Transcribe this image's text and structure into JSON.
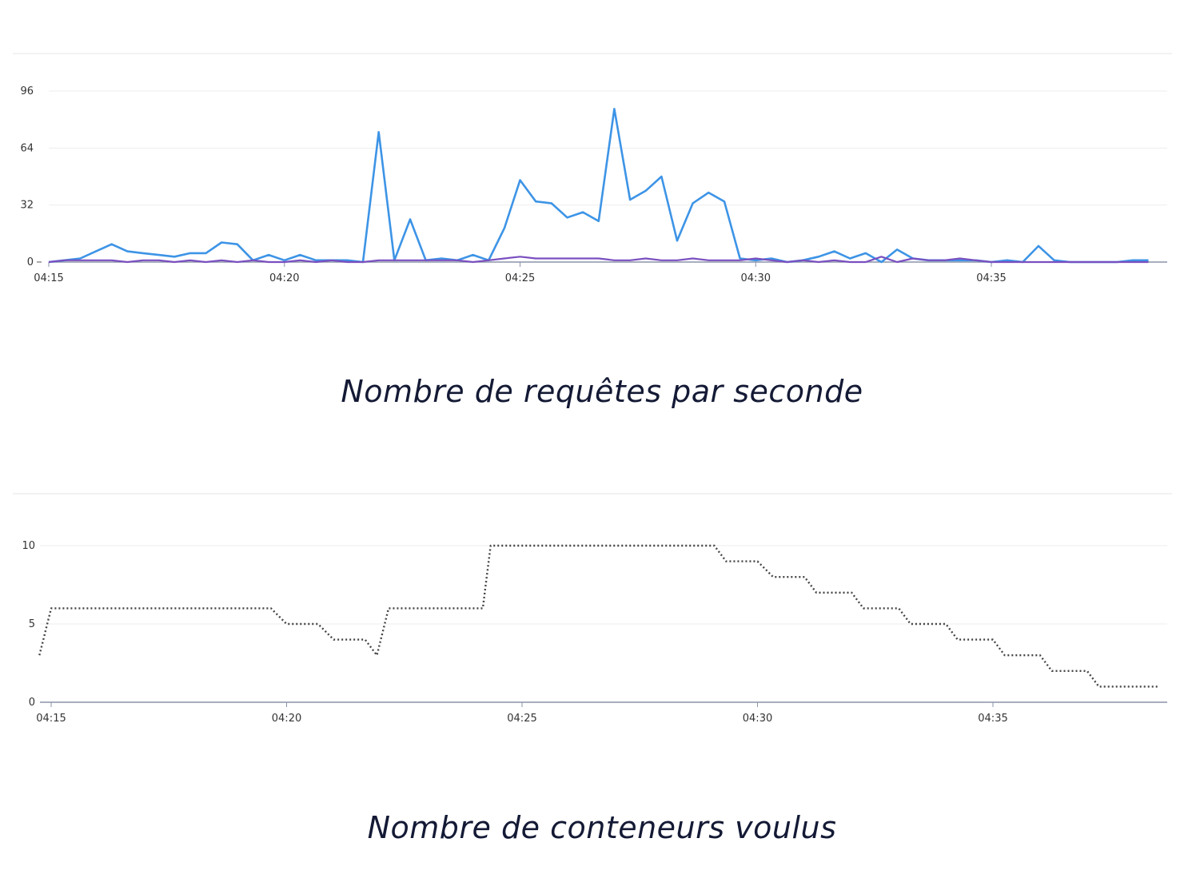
{
  "charts": [
    {
      "caption": "Nombre de requêtes par seconde"
    },
    {
      "caption": "Nombre de conteneurs voulus"
    }
  ],
  "chart_data": [
    {
      "type": "line",
      "title": "Nombre de requêtes par seconde",
      "xlabel": "",
      "ylabel": "",
      "x_ticks": [
        "04:15",
        "04:20",
        "04:25",
        "04:30",
        "04:35"
      ],
      "y_ticks": [
        0,
        32,
        64,
        96
      ],
      "ylim": [
        0,
        100
      ],
      "xlim": [
        "04:15",
        "04:38:30"
      ],
      "grid": true,
      "x": [
        "04:15",
        "04:15:20",
        "04:15:40",
        "04:16",
        "04:16:20",
        "04:16:40",
        "04:17",
        "04:17:20",
        "04:17:40",
        "04:18",
        "04:18:20",
        "04:18:40",
        "04:19",
        "04:19:20",
        "04:19:40",
        "04:20",
        "04:20:20",
        "04:20:40",
        "04:21",
        "04:21:20",
        "04:21:40",
        "04:22",
        "04:22:20",
        "04:22:40",
        "04:23",
        "04:23:20",
        "04:23:40",
        "04:24",
        "04:24:20",
        "04:24:40",
        "04:25",
        "04:25:20",
        "04:25:40",
        "04:26",
        "04:26:20",
        "04:26:40",
        "04:27",
        "04:27:20",
        "04:27:40",
        "04:28",
        "04:28:20",
        "04:28:40",
        "04:29",
        "04:29:20",
        "04:29:40",
        "04:30",
        "04:30:20",
        "04:30:40",
        "04:31",
        "04:31:20",
        "04:31:40",
        "04:32",
        "04:32:20",
        "04:32:40",
        "04:33",
        "04:33:20",
        "04:33:40",
        "04:34",
        "04:34:20",
        "04:34:40",
        "04:35",
        "04:35:20",
        "04:35:40",
        "04:36",
        "04:36:20",
        "04:36:40",
        "04:37",
        "04:37:20",
        "04:37:40",
        "04:38",
        "04:38:20"
      ],
      "series": [
        {
          "color": "#3d94e6",
          "values": [
            0,
            1,
            2,
            6,
            10,
            6,
            5,
            4,
            3,
            5,
            5,
            11,
            10,
            1,
            4,
            1,
            4,
            1,
            1,
            1,
            0,
            73,
            1,
            24,
            1,
            2,
            1,
            4,
            1,
            19,
            46,
            34,
            33,
            25,
            28,
            23,
            86,
            35,
            40,
            48,
            12,
            33,
            39,
            34,
            2,
            1,
            2,
            0,
            1,
            3,
            6,
            2,
            5,
            0,
            7,
            2,
            1,
            1,
            1,
            1,
            0,
            1,
            0,
            9,
            1,
            0,
            0,
            0,
            0,
            1,
            1
          ]
        },
        {
          "color": "#7a4fc0",
          "values": [
            0,
            1,
            1,
            1,
            1,
            0,
            1,
            1,
            0,
            1,
            0,
            1,
            0,
            1,
            0,
            0,
            1,
            0,
            1,
            0,
            0,
            1,
            1,
            1,
            1,
            1,
            1,
            0,
            1,
            2,
            3,
            2,
            2,
            2,
            2,
            2,
            1,
            1,
            2,
            1,
            1,
            2,
            1,
            1,
            1,
            2,
            1,
            0,
            1,
            0,
            1,
            0,
            0,
            3,
            0,
            2,
            1,
            1,
            2,
            1,
            0,
            0,
            0,
            0,
            0,
            0,
            0,
            0,
            0,
            0,
            0
          ]
        }
      ]
    },
    {
      "type": "line",
      "title": "Nombre de conteneurs voulus",
      "xlabel": "",
      "ylabel": "",
      "x_ticks": [
        "04:15",
        "04:20",
        "04:25",
        "04:30",
        "04:35"
      ],
      "y_ticks": [
        0,
        5,
        10
      ],
      "ylim": [
        0,
        10
      ],
      "xlim": [
        "04:14:45",
        "04:38:30"
      ],
      "grid": true,
      "line_style": "dotted",
      "series": [
        {
          "color": "#444444",
          "points": [
            [
              "04:14:45",
              3
            ],
            [
              "04:15",
              6
            ],
            [
              "04:19:40",
              6
            ],
            [
              "04:20",
              5
            ],
            [
              "04:20:40",
              5
            ],
            [
              "04:21",
              4
            ],
            [
              "04:21:40",
              4
            ],
            [
              "04:21:55",
              3
            ],
            [
              "04:22:10",
              6
            ],
            [
              "04:24:10",
              6
            ],
            [
              "04:24:20",
              10
            ],
            [
              "04:29:05",
              10
            ],
            [
              "04:29:20",
              9
            ],
            [
              "04:30",
              9
            ],
            [
              "04:30:20",
              8
            ],
            [
              "04:31",
              8
            ],
            [
              "04:31:15",
              7
            ],
            [
              "04:32",
              7
            ],
            [
              "04:32:15",
              6
            ],
            [
              "04:33",
              6
            ],
            [
              "04:33:15",
              5
            ],
            [
              "04:34",
              5
            ],
            [
              "04:34:15",
              4
            ],
            [
              "04:35",
              4
            ],
            [
              "04:35:15",
              3
            ],
            [
              "04:36",
              3
            ],
            [
              "04:36:15",
              2
            ],
            [
              "04:37",
              2
            ],
            [
              "04:37:15",
              1
            ],
            [
              "04:38:30",
              1
            ]
          ]
        }
      ]
    }
  ]
}
